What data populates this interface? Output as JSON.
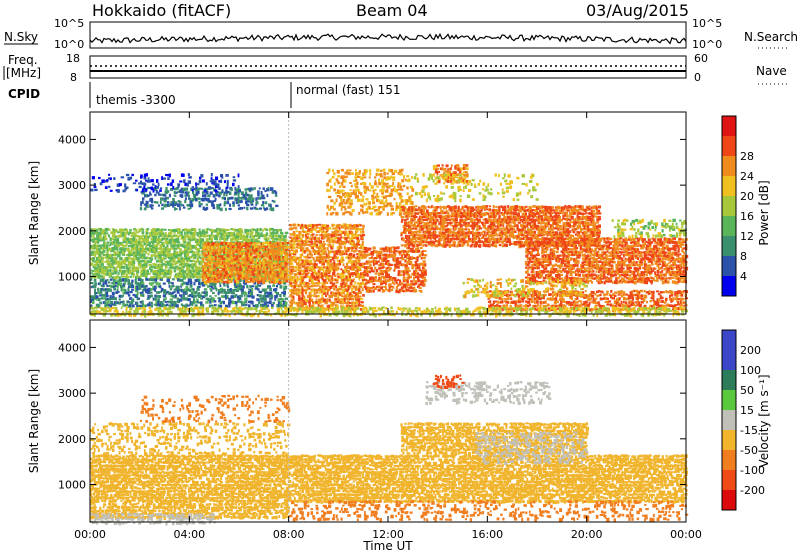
{
  "header": {
    "station": "Hokkaido (fitACF)",
    "beam": "Beam 04",
    "date": "03/Aug/2015"
  },
  "top_panels": {
    "nsky_label": "N.Sky",
    "nsky_ticks": [
      "10^5",
      "10^0"
    ],
    "nsearch_label": "N.Search",
    "freq_label_1": "Freq.",
    "freq_label_2": "[MHz]",
    "freq_ticks": [
      "18",
      "8"
    ],
    "nave_label": "Nave",
    "nave_ticks": [
      "60",
      "0"
    ],
    "cpid_label": "CPID",
    "cpid_segments": [
      {
        "name": "themis -3300",
        "start_hour": 0,
        "end_hour": 8
      },
      {
        "name": "normal (fast) 151",
        "start_hour": 8,
        "end_hour": 24
      }
    ]
  },
  "x_axis": {
    "label": "Time UT",
    "ticks": [
      "00:00",
      "04:00",
      "08:00",
      "12:00",
      "16:00",
      "20:00",
      "00:00"
    ]
  },
  "colors": {
    "power": [
      "#0000ee",
      "#2a52a8",
      "#3a8f6e",
      "#5ab45a",
      "#a8c83c",
      "#f0c020",
      "#f08c1e",
      "#ee4616",
      "#e01414"
    ],
    "velocity": [
      "#3c46c8",
      "#2d7d5a",
      "#5ac83c",
      "#c0c0b8",
      "#f0b42d",
      "#f07d1e",
      "#f04b14",
      "#dc0a0a"
    ]
  },
  "chart_data": [
    {
      "type": "heatmap",
      "title": "Power",
      "ylabel": "Slant Range [km]",
      "xlabel": "",
      "y_ticks": [
        "1000",
        "2000",
        "3000",
        "4000"
      ],
      "colorbar_label": "Power [dB]",
      "colorbar_ticks": [
        "4",
        "8",
        "12",
        "16",
        "20",
        "24",
        "28"
      ],
      "xlim": [
        0,
        24
      ],
      "ylim": [
        180,
        4600
      ],
      "bands": [
        {
          "h0": 0.0,
          "h1": 7.9,
          "r0": 1000,
          "r1": 2100,
          "level": 16,
          "density": 0.85
        },
        {
          "h0": 0.0,
          "h1": 7.9,
          "r0": 380,
          "r1": 1000,
          "level": 9,
          "density": 0.6
        },
        {
          "h0": 2.0,
          "h1": 7.5,
          "r0": 2500,
          "r1": 3000,
          "level": 8,
          "density": 0.5
        },
        {
          "h0": 0.0,
          "h1": 6.0,
          "r0": 2900,
          "r1": 3300,
          "level": 4,
          "density": 0.2
        },
        {
          "h0": 4.5,
          "h1": 8.0,
          "r0": 900,
          "r1": 1800,
          "level": 26,
          "density": 0.9
        },
        {
          "h0": 8.0,
          "h1": 11.0,
          "r0": 300,
          "r1": 2200,
          "level": 26,
          "density": 0.8
        },
        {
          "h0": 11.0,
          "h1": 13.5,
          "r0": 700,
          "r1": 1700,
          "level": 28,
          "density": 0.7
        },
        {
          "h0": 9.5,
          "h1": 13.0,
          "r0": 2400,
          "r1": 3400,
          "level": 24,
          "density": 0.45
        },
        {
          "h0": 12.5,
          "h1": 20.5,
          "r0": 1700,
          "r1": 2600,
          "level": 28,
          "density": 0.85
        },
        {
          "h0": 13.8,
          "h1": 15.2,
          "r0": 3100,
          "r1": 3500,
          "level": 26,
          "density": 0.6
        },
        {
          "h0": 17.5,
          "h1": 24.0,
          "r0": 900,
          "r1": 1900,
          "level": 28,
          "density": 0.85
        },
        {
          "h0": 16.0,
          "h1": 24.0,
          "r0": 300,
          "r1": 750,
          "level": 28,
          "density": 0.7
        },
        {
          "h0": 15.0,
          "h1": 20.0,
          "r0": 600,
          "r1": 1000,
          "level": 22,
          "density": 0.4
        },
        {
          "h0": 21.0,
          "h1": 24.0,
          "r0": 1900,
          "r1": 2300,
          "level": 18,
          "density": 0.4
        },
        {
          "h0": 13.0,
          "h1": 18.0,
          "r0": 2700,
          "r1": 3300,
          "level": 20,
          "density": 0.2
        },
        {
          "h0": 0.0,
          "h1": 24.0,
          "r0": 180,
          "r1": 380,
          "level": 20,
          "density": 0.6
        }
      ]
    },
    {
      "type": "heatmap",
      "title": "Velocity",
      "ylabel": "Slant Range [km]",
      "xlabel": "Time UT",
      "y_ticks": [
        "1000",
        "2000",
        "3000",
        "4000"
      ],
      "colorbar_label": "Velocity [m s⁻¹]",
      "colorbar_ticks": [
        "200",
        "100",
        "50",
        "15",
        "-15",
        "-50",
        "-100",
        "-200"
      ],
      "xlim": [
        0,
        24
      ],
      "ylim": [
        180,
        4600
      ],
      "bands": [
        {
          "h0": 0.0,
          "h1": 24.0,
          "r0": 650,
          "r1": 1700,
          "level": 0,
          "density": 0.85
        },
        {
          "h0": 0.0,
          "h1": 8.0,
          "r0": 300,
          "r1": 650,
          "level": 0,
          "density": 0.75
        },
        {
          "h0": 0.0,
          "h1": 5.0,
          "r0": 180,
          "r1": 420,
          "level": 30,
          "density": 0.65
        },
        {
          "h0": 12.5,
          "h1": 20.0,
          "r0": 1700,
          "r1": 2400,
          "level": 0,
          "density": 0.8
        },
        {
          "h0": 15.5,
          "h1": 20.0,
          "r0": 1500,
          "r1": 2200,
          "level": 30,
          "density": 0.35
        },
        {
          "h0": 13.5,
          "h1": 18.5,
          "r0": 2800,
          "r1": 3300,
          "level": 40,
          "density": 0.35
        },
        {
          "h0": 8.0,
          "h1": 24.0,
          "r0": 250,
          "r1": 700,
          "level": -40,
          "density": 0.3
        },
        {
          "h0": 2.0,
          "h1": 8.0,
          "r0": 2400,
          "r1": 3000,
          "level": -20,
          "density": 0.2
        },
        {
          "h0": 13.8,
          "h1": 15.0,
          "r0": 3150,
          "r1": 3450,
          "level": -90,
          "density": 0.5
        },
        {
          "h0": 0.0,
          "h1": 8.0,
          "r0": 1700,
          "r1": 2400,
          "level": 0,
          "density": 0.3
        }
      ]
    }
  ]
}
